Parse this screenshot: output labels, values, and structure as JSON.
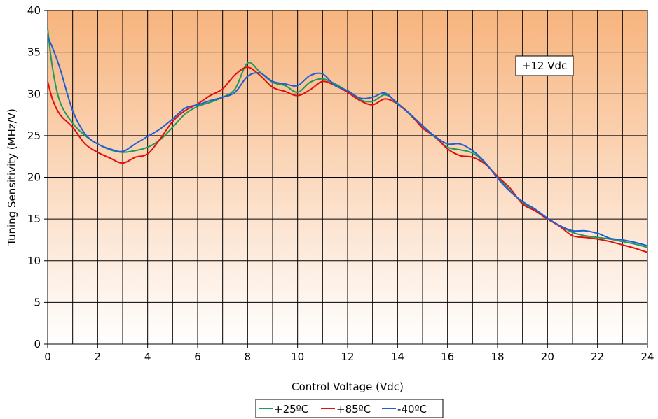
{
  "chart_data": {
    "type": "line",
    "xlabel": "Control Voltage (Vdc)",
    "ylabel": "Tuning Sensitivity (MHz/V)",
    "xlim": [
      0,
      24
    ],
    "ylim": [
      0,
      40
    ],
    "x_ticks": [
      0,
      2,
      4,
      6,
      8,
      10,
      12,
      14,
      16,
      18,
      20,
      22,
      24
    ],
    "y_ticks": [
      0,
      5,
      10,
      15,
      20,
      25,
      30,
      35,
      40
    ],
    "x_grid_step": 1,
    "y_grid_step": 5,
    "grid": true,
    "legend_position": "bottom",
    "annotation": "+12 Vdc",
    "background_gradient": [
      "#f7b47e",
      "#ffffff"
    ],
    "series": [
      {
        "name": "+25ºC",
        "color": "#1e9a5a",
        "x": [
          0,
          0.2,
          0.5,
          1,
          1.5,
          2,
          2.5,
          3,
          3.5,
          4,
          4.5,
          5,
          5.5,
          6,
          6.5,
          7,
          7.5,
          8,
          8.5,
          9,
          9.5,
          10,
          10.5,
          11,
          11.5,
          12,
          12.5,
          13,
          13.5,
          14,
          14.5,
          15,
          15.5,
          16,
          16.5,
          17,
          17.5,
          18,
          18.5,
          19,
          19.5,
          20,
          20.5,
          21,
          21.5,
          22,
          22.5,
          23,
          23.5,
          24
        ],
        "y": [
          37.8,
          33,
          29,
          26.5,
          25,
          24,
          23.3,
          23,
          23.2,
          23.6,
          24.5,
          26,
          27.6,
          28.5,
          29,
          29.6,
          30.6,
          33.7,
          32.6,
          31.4,
          31,
          30.2,
          31.4,
          31.8,
          31.2,
          30.3,
          29.3,
          29.1,
          29.9,
          28.9,
          27.5,
          26,
          24.8,
          23.6,
          23.3,
          22.9,
          21.7,
          20,
          18.4,
          17,
          16,
          15,
          14.2,
          13.4,
          13,
          12.8,
          12.6,
          12.3,
          12,
          11.6
        ]
      },
      {
        "name": "+85ºC",
        "color": "#e01010",
        "x": [
          0,
          0.2,
          0.5,
          1,
          1.5,
          2,
          2.5,
          3,
          3.5,
          4,
          4.5,
          5,
          5.5,
          6,
          6.5,
          7,
          7.5,
          8,
          8.5,
          9,
          9.5,
          10,
          10.5,
          11,
          11.5,
          12,
          12.5,
          13,
          13.5,
          14,
          14.5,
          15,
          15.5,
          16,
          16.5,
          17,
          17.5,
          18,
          18.5,
          19,
          19.5,
          20,
          20.5,
          21,
          21.5,
          22,
          22.5,
          23,
          23.5,
          24
        ],
        "y": [
          31.5,
          29.3,
          27.5,
          26,
          24,
          23,
          22.3,
          21.7,
          22.4,
          22.8,
          24.6,
          26.7,
          28,
          28.8,
          29.8,
          30.6,
          32.3,
          33.2,
          32.2,
          30.8,
          30.3,
          29.8,
          30.5,
          31.5,
          31,
          30.2,
          29.2,
          28.7,
          29.4,
          28.8,
          27.6,
          25.9,
          24.9,
          23.4,
          22.6,
          22.4,
          21.6,
          20.1,
          18.7,
          16.8,
          16,
          15,
          14.1,
          13,
          12.8,
          12.6,
          12.3,
          11.9,
          11.5,
          11
        ]
      },
      {
        "name": "-40ºC",
        "color": "#1f5fd6",
        "x": [
          0,
          0.2,
          0.5,
          1,
          1.5,
          2,
          2.5,
          3,
          3.5,
          4,
          4.5,
          5,
          5.5,
          6,
          6.5,
          7,
          7.5,
          8,
          8.5,
          9,
          9.5,
          10,
          10.5,
          11,
          11.5,
          12,
          12.5,
          13,
          13.5,
          14,
          14.5,
          15,
          15.5,
          16,
          16.5,
          17,
          17.5,
          18,
          18.5,
          19,
          19.5,
          20,
          20.5,
          21,
          21.5,
          22,
          22.5,
          23,
          23.5,
          24
        ],
        "y": [
          36.8,
          35.5,
          33,
          28,
          25.2,
          24,
          23.4,
          23.1,
          24,
          24.9,
          25.8,
          27,
          28.3,
          28.7,
          29.2,
          29.6,
          30.2,
          32.1,
          32.5,
          31.5,
          31.2,
          31,
          32.2,
          32.4,
          31,
          30.4,
          29.5,
          29.6,
          30.1,
          28.8,
          27.6,
          26.2,
          24.9,
          24,
          24,
          23.2,
          21.8,
          19.9,
          18.3,
          17.1,
          16.2,
          15.1,
          14.2,
          13.6,
          13.6,
          13.3,
          12.7,
          12.5,
          12.2,
          11.8
        ]
      }
    ]
  }
}
